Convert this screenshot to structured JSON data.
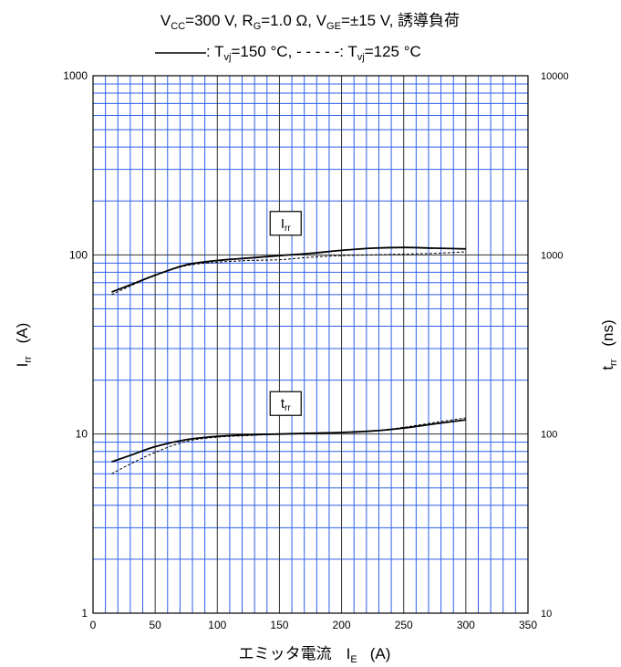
{
  "chart_data": {
    "type": "line",
    "title_line1": {
      "parts": [
        {
          "text": "V",
          "sub": "CC"
        },
        {
          "text": "=300  V,  R",
          "sub": "G"
        },
        {
          "text": "=1.0  Ω,  V",
          "sub": "GE"
        },
        {
          "text": "=±15  V,  誘導負荷",
          "sub": ""
        }
      ]
    },
    "title_line2": {
      "solid_label": ": T",
      "solid_sub": "vj",
      "solid_value": "=150 °C, ",
      "dash_prefix": "- - - - -",
      "dash_label": ": T",
      "dash_sub": "vj",
      "dash_value": "=125 °C"
    },
    "xlabel": "エミッタ電流",
    "xlabel_symbol": "I",
    "xlabel_sub": "E",
    "xlabel_unit": "(A)",
    "ylabel_left": "I",
    "ylabel_left_sub": "rr",
    "ylabel_left_unit": "(A)",
    "ylabel_right": "t",
    "ylabel_right_sub": "rr",
    "ylabel_right_unit": "(ns)",
    "xlim": [
      0,
      350
    ],
    "ylim_left": [
      1,
      1000
    ],
    "ylim_right": [
      10,
      10000
    ],
    "yscale": "log",
    "grid": true,
    "grid_color": "#2f5fe8",
    "x_ticks": [
      "0",
      "50",
      "100",
      "150",
      "200",
      "250",
      "300",
      "350"
    ],
    "y_ticks_left": [
      "1",
      "10",
      "100",
      "1000"
    ],
    "y_ticks_right": [
      "10",
      "100",
      "1000",
      "10000"
    ],
    "annotations": [
      {
        "main": "I",
        "sub": "rr",
        "x": 155,
        "y": 150
      },
      {
        "main": "t",
        "sub": "rr",
        "x": 155,
        "y": 14.8
      }
    ],
    "series": [
      {
        "name": "Irr_150",
        "line": "solid",
        "x": [
          15,
          30,
          50,
          75,
          100,
          125,
          150,
          175,
          200,
          225,
          250,
          275,
          300
        ],
        "y": [
          62,
          68,
          77,
          88,
          93,
          96,
          99,
          102,
          106,
          109,
          110,
          109,
          108
        ]
      },
      {
        "name": "Irr_125",
        "line": "dashed",
        "x": [
          15,
          30,
          50,
          75,
          100,
          125,
          150,
          175,
          200,
          225,
          250,
          275,
          300
        ],
        "y": [
          60,
          67,
          77,
          87,
          91,
          93,
          94,
          97,
          99,
          100,
          101,
          102,
          104
        ]
      },
      {
        "name": "trr_150",
        "line": "solid",
        "x": [
          15,
          30,
          50,
          75,
          100,
          125,
          150,
          175,
          200,
          225,
          250,
          275,
          300
        ],
        "y": [
          7.0,
          7.6,
          8.5,
          9.3,
          9.7,
          9.9,
          10.0,
          10.1,
          10.2,
          10.4,
          10.8,
          11.4,
          12.0
        ]
      },
      {
        "name": "trr_125",
        "line": "dashed",
        "x": [
          15,
          30,
          50,
          75,
          100,
          125,
          150,
          175,
          200,
          225,
          250,
          275,
          300
        ],
        "y": [
          6.0,
          6.8,
          7.9,
          9.1,
          9.6,
          9.8,
          10.0,
          10.1,
          10.2,
          10.4,
          10.9,
          11.6,
          12.3
        ]
      }
    ]
  }
}
